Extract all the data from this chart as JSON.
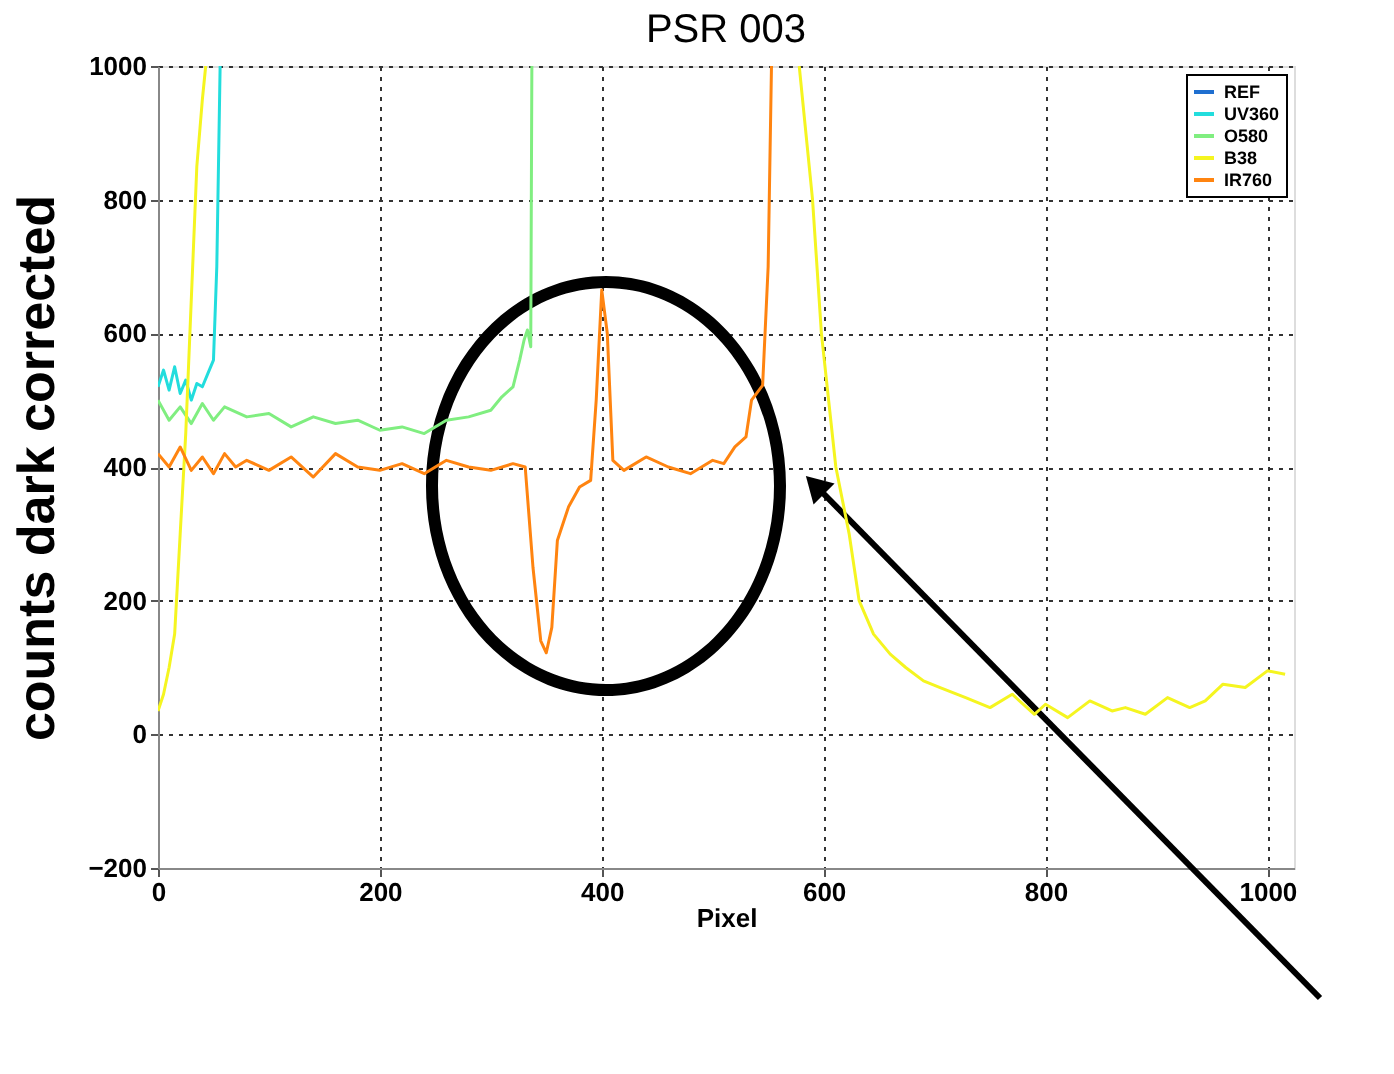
{
  "chart_data": {
    "type": "line",
    "title": "PSR 003",
    "xlabel": "Pixel",
    "ylabel": "counts dark corrected",
    "xlim": [
      0,
      1024
    ],
    "ylim": [
      -200,
      1000
    ],
    "xticks": [
      0,
      200,
      400,
      600,
      800,
      1000
    ],
    "yticks": [
      -200,
      0,
      200,
      400,
      600,
      800,
      1000
    ],
    "grid": true,
    "legend": "top right",
    "line_style": "solid",
    "marker": "none",
    "series": [
      {
        "name": "REF",
        "color": "#1f6fd0"
      },
      {
        "name": "UV360",
        "color": "#22dddd",
        "x": [
          0,
          5,
          10,
          15,
          20,
          25,
          30,
          35,
          40,
          45,
          50,
          53,
          56
        ],
        "values": [
          520,
          545,
          515,
          550,
          510,
          530,
          500,
          525,
          520,
          540,
          560,
          700,
          1000
        ]
      },
      {
        "name": "O580",
        "color": "#80ee80",
        "x": [
          0,
          10,
          20,
          30,
          40,
          50,
          60,
          80,
          100,
          120,
          140,
          160,
          180,
          200,
          220,
          240,
          260,
          280,
          300,
          310,
          320,
          326,
          330,
          333,
          336,
          337
        ],
        "values": [
          500,
          470,
          490,
          465,
          495,
          470,
          490,
          475,
          480,
          460,
          475,
          465,
          470,
          455,
          460,
          450,
          470,
          475,
          485,
          505,
          520,
          560,
          590,
          605,
          580,
          1000
        ]
      },
      {
        "name": "B38",
        "color": "#f5f520",
        "x": [
          0,
          5,
          10,
          15,
          20,
          25,
          30,
          35,
          40,
          43,
          300,
          578,
          590,
          598,
          611,
          623,
          632,
          645,
          660,
          674,
          690,
          705,
          728,
          750,
          770,
          790,
          800,
          820,
          840,
          860,
          872,
          890,
          910,
          930,
          944,
          960,
          980,
          1000,
          1016
        ],
        "values": [
          35,
          60,
          100,
          150,
          300,
          450,
          650,
          850,
          950,
          1000,
          null,
          1000,
          800,
          600,
          400,
          300,
          200,
          150,
          120,
          100,
          80,
          70,
          55,
          40,
          60,
          30,
          45,
          25,
          50,
          35,
          40,
          30,
          55,
          40,
          50,
          75,
          70,
          95,
          90
        ]
      },
      {
        "name": "IR760",
        "color": "#ff8410",
        "x": [
          0,
          10,
          20,
          30,
          40,
          50,
          60,
          70,
          80,
          100,
          120,
          140,
          160,
          180,
          200,
          220,
          240,
          260,
          280,
          300,
          320,
          331,
          338,
          345,
          350,
          355,
          360,
          370,
          380,
          390,
          395,
          400,
          405,
          410,
          420,
          440,
          460,
          480,
          500,
          510,
          520,
          530,
          535,
          545,
          550,
          553
        ],
        "values": [
          420,
          400,
          430,
          395,
          415,
          390,
          420,
          400,
          410,
          395,
          415,
          385,
          420,
          400,
          395,
          405,
          390,
          410,
          400,
          395,
          405,
          400,
          250,
          140,
          122,
          160,
          290,
          340,
          370,
          380,
          500,
          665,
          600,
          410,
          395,
          415,
          400,
          390,
          410,
          405,
          430,
          445,
          500,
          522,
          700,
          1000
        ]
      }
    ]
  }
}
